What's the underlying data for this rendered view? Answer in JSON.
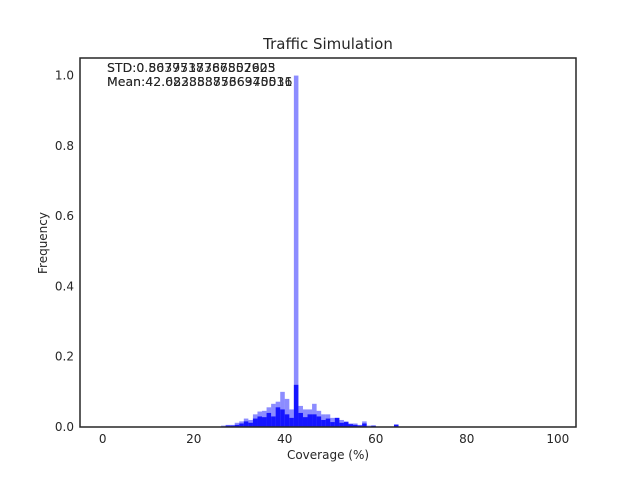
{
  "chart_data": {
    "type": "bar",
    "title": "Traffic Simulation",
    "xlabel": "Coverage (%)",
    "ylabel": "Frequency",
    "xlim": [
      -5,
      104
    ],
    "ylim": [
      0,
      1.05
    ],
    "xticks": [
      "0",
      "20",
      "40",
      "60",
      "80",
      "100"
    ],
    "yticks": [
      "0.0",
      "0.2",
      "0.4",
      "0.6",
      "0.8",
      "1.0"
    ],
    "grid": false,
    "bar_color": "#0000ff",
    "annotations": {
      "std_lines": [
        "STD:0.5679737367557603",
        "STD:0.8037518786802925"
      ],
      "mean_lines": [
        "Mean:42.6828838766940516",
        "Mean:42.0233587536375031"
      ]
    },
    "bin_width": 1,
    "series": [
      {
        "opacity": 0.45,
        "bins": [
          [
            26,
            0.004
          ],
          [
            27,
            0.006
          ],
          [
            28,
            0.006
          ],
          [
            29,
            0.012
          ],
          [
            30,
            0.016
          ],
          [
            31,
            0.024
          ],
          [
            32,
            0.02
          ],
          [
            33,
            0.036
          ],
          [
            34,
            0.044
          ],
          [
            35,
            0.046
          ],
          [
            36,
            0.056
          ],
          [
            37,
            0.066
          ],
          [
            38,
            0.072
          ],
          [
            39,
            0.1
          ],
          [
            40,
            0.08
          ],
          [
            41,
            0.05
          ],
          [
            42,
            1.0
          ],
          [
            43,
            0.06
          ],
          [
            44,
            0.05
          ],
          [
            45,
            0.05
          ],
          [
            46,
            0.066
          ],
          [
            47,
            0.046
          ],
          [
            48,
            0.036
          ],
          [
            49,
            0.036
          ],
          [
            50,
            0.026
          ],
          [
            51,
            0.026
          ],
          [
            52,
            0.02
          ],
          [
            53,
            0.016
          ],
          [
            54,
            0.01
          ],
          [
            55,
            0.01
          ],
          [
            56,
            0.006
          ],
          [
            57,
            0.016
          ],
          [
            58,
            0.004
          ],
          [
            59,
            0.004
          ],
          [
            64,
            0.008
          ]
        ]
      },
      {
        "opacity": 0.85,
        "bins": [
          [
            27,
            0.004
          ],
          [
            28,
            0.004
          ],
          [
            29,
            0.006
          ],
          [
            30,
            0.01
          ],
          [
            31,
            0.016
          ],
          [
            32,
            0.012
          ],
          [
            33,
            0.024
          ],
          [
            34,
            0.03
          ],
          [
            35,
            0.028
          ],
          [
            36,
            0.04
          ],
          [
            37,
            0.03
          ],
          [
            38,
            0.056
          ],
          [
            39,
            0.05
          ],
          [
            40,
            0.036
          ],
          [
            41,
            0.026
          ],
          [
            42,
            0.12
          ],
          [
            43,
            0.04
          ],
          [
            44,
            0.028
          ],
          [
            45,
            0.036
          ],
          [
            46,
            0.036
          ],
          [
            47,
            0.03
          ],
          [
            48,
            0.02
          ],
          [
            49,
            0.024
          ],
          [
            50,
            0.014
          ],
          [
            51,
            0.026
          ],
          [
            52,
            0.012
          ],
          [
            53,
            0.014
          ],
          [
            54,
            0.008
          ],
          [
            55,
            0.006
          ],
          [
            56,
            0.004
          ],
          [
            57,
            0.01
          ],
          [
            59,
            0.004
          ],
          [
            64,
            0.006
          ]
        ]
      }
    ]
  }
}
